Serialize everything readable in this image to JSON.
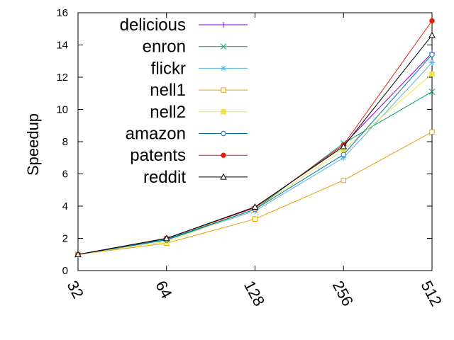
{
  "chart_data": {
    "type": "line",
    "title": "",
    "xlabel": "",
    "ylabel": "Speedup",
    "x_scale": "log2",
    "categories": [
      "32",
      "64",
      "128",
      "256",
      "512"
    ],
    "x": [
      32,
      64,
      128,
      256,
      512
    ],
    "ylim": [
      0,
      16
    ],
    "yticks": [
      0,
      2,
      4,
      6,
      8,
      10,
      12,
      14,
      16
    ],
    "grid": false,
    "legend_position": "top-left",
    "series": [
      {
        "name": "delicious",
        "color": "#9400d3",
        "marker": "plus",
        "values": [
          1,
          2.0,
          3.9,
          7.8,
          13.5
        ]
      },
      {
        "name": "enron",
        "color": "#009e73",
        "marker": "cross",
        "values": [
          1,
          1.95,
          3.8,
          7.9,
          11.1
        ]
      },
      {
        "name": "flickr",
        "color": "#56b4e9",
        "marker": "star",
        "values": [
          1,
          1.9,
          3.7,
          7.0,
          12.9
        ]
      },
      {
        "name": "nell1",
        "color": "#e69f00",
        "marker": "open-square",
        "values": [
          1,
          1.7,
          3.2,
          5.6,
          8.6
        ]
      },
      {
        "name": "nell2",
        "color": "#f0e442",
        "marker": "filled-square",
        "values": [
          1,
          1.8,
          3.8,
          7.5,
          12.2
        ]
      },
      {
        "name": "amazon",
        "color": "#0072b2",
        "marker": "open-circle",
        "values": [
          1,
          1.9,
          3.8,
          7.2,
          13.4
        ]
      },
      {
        "name": "patents",
        "color": "#e51e10",
        "marker": "filled-circle",
        "values": [
          1,
          2.0,
          3.9,
          7.8,
          15.5
        ]
      },
      {
        "name": "reddit",
        "color": "#000000",
        "marker": "open-triangle",
        "values": [
          1,
          2.0,
          3.95,
          7.7,
          14.6
        ]
      }
    ]
  }
}
